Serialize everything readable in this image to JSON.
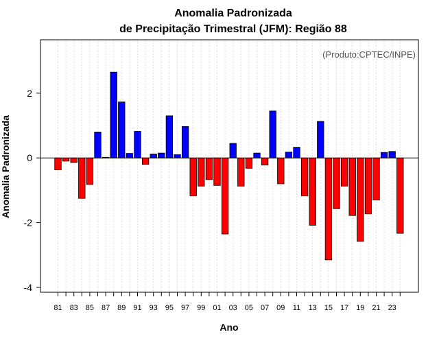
{
  "chart_data": {
    "type": "bar",
    "title": "Anomalia Padronizada",
    "subtitle": "de Precipitação Trimestral (JFM): Região 88",
    "xlabel": "Ano",
    "ylabel": "Anomalia Padronizada",
    "credit": "(Produto:CPTEC/INPE)",
    "ylim": [
      -4.15,
      3.65
    ],
    "yticks": [
      -4,
      -2,
      0,
      2
    ],
    "ytick_labels": [
      "-4",
      "-2",
      "0",
      "2"
    ],
    "years": [
      1981,
      1982,
      1983,
      1984,
      1985,
      1986,
      1987,
      1988,
      1989,
      1990,
      1991,
      1992,
      1993,
      1994,
      1995,
      1996,
      1997,
      1998,
      1999,
      2000,
      2001,
      2002,
      2003,
      2004,
      2005,
      2006,
      2007,
      2008,
      2009,
      2010,
      2011,
      2012,
      2013,
      2014,
      2015,
      2016,
      2017,
      2018,
      2019,
      2020,
      2021,
      2022,
      2023,
      2024
    ],
    "xtick_labels": [
      "81",
      "83",
      "85",
      "87",
      "89",
      "91",
      "93",
      "95",
      "97",
      "99",
      "01",
      "03",
      "05",
      "07",
      "09",
      "11",
      "13",
      "15",
      "17",
      "19",
      "21",
      "23"
    ],
    "values": [
      -0.37,
      -0.1,
      -0.14,
      -1.25,
      -0.82,
      0.8,
      0.02,
      2.65,
      1.73,
      0.14,
      0.82,
      -0.2,
      0.12,
      0.15,
      1.3,
      0.1,
      0.97,
      -1.17,
      -0.87,
      -0.67,
      -0.85,
      -2.35,
      0.45,
      -0.87,
      -0.32,
      0.15,
      -0.22,
      1.45,
      -0.8,
      0.18,
      0.33,
      -1.17,
      -2.08,
      1.13,
      -3.15,
      -1.57,
      -0.87,
      -1.78,
      -2.58,
      -1.73,
      -1.3,
      0.17,
      0.2,
      -2.33
    ],
    "colors": {
      "positive": "#0000ff",
      "negative": "#ff0000",
      "outline": "#000000",
      "grid": "#d3d3d3",
      "credit": "#555555"
    }
  }
}
